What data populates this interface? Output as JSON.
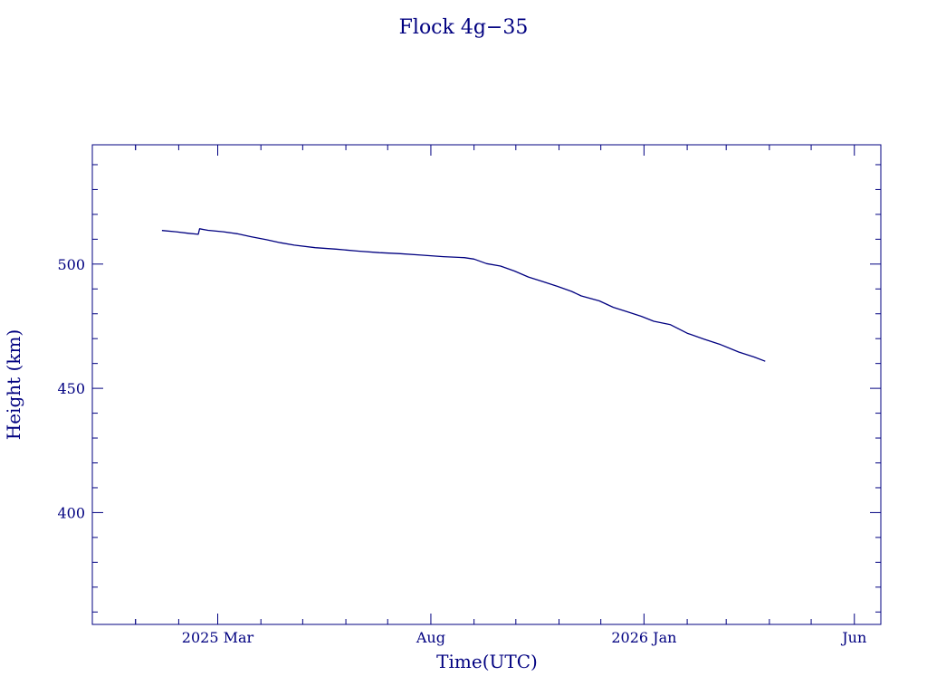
{
  "chart_data": {
    "type": "line",
    "title": "Flock 4g−35",
    "xlabel": "Time(UTC)",
    "ylabel": "Height (km)",
    "xlim": [
      "2024-12-01",
      "2026-06-20"
    ],
    "ylim": [
      355,
      548
    ],
    "x_ticks": [
      {
        "date": "2025-03-01",
        "label": "2025 Mar"
      },
      {
        "date": "2025-08-01",
        "label": "Aug"
      },
      {
        "date": "2026-01-01",
        "label": "2026 Jan"
      },
      {
        "date": "2026-06-01",
        "label": "Jun"
      }
    ],
    "y_ticks": [
      {
        "value": 400,
        "label": "400"
      },
      {
        "value": 450,
        "label": "450"
      },
      {
        "value": 500,
        "label": "500"
      }
    ],
    "grid": false,
    "color": "#000080",
    "series": [
      {
        "points": [
          [
            "2025-01-20",
            513.5
          ],
          [
            "2025-01-30",
            513.0
          ],
          [
            "2025-02-08",
            512.4
          ],
          [
            "2025-02-15",
            512.0
          ],
          [
            "2025-02-16",
            514.2
          ],
          [
            "2025-02-22",
            513.6
          ],
          [
            "2025-03-05",
            513.0
          ],
          [
            "2025-03-15",
            512.2
          ],
          [
            "2025-03-25",
            511.0
          ],
          [
            "2025-04-05",
            509.8
          ],
          [
            "2025-04-15",
            508.6
          ],
          [
            "2025-04-25",
            507.6
          ],
          [
            "2025-05-10",
            506.6
          ],
          [
            "2025-05-25",
            506.0
          ],
          [
            "2025-06-10",
            505.2
          ],
          [
            "2025-06-25",
            504.6
          ],
          [
            "2025-07-10",
            504.2
          ],
          [
            "2025-07-25",
            503.6
          ],
          [
            "2025-08-10",
            503.0
          ],
          [
            "2025-08-25",
            502.6
          ],
          [
            "2025-09-01",
            502.0
          ],
          [
            "2025-09-10",
            500.2
          ],
          [
            "2025-09-20",
            499.2
          ],
          [
            "2025-09-30",
            497.2
          ],
          [
            "2025-10-10",
            494.8
          ],
          [
            "2025-10-20",
            493.0
          ],
          [
            "2025-10-31",
            491.0
          ],
          [
            "2025-11-10",
            489.0
          ],
          [
            "2025-11-17",
            487.2
          ],
          [
            "2025-11-30",
            485.2
          ],
          [
            "2025-12-10",
            482.6
          ],
          [
            "2025-12-20",
            480.8
          ],
          [
            "2025-12-30",
            479.0
          ],
          [
            "2026-01-08",
            477.0
          ],
          [
            "2026-01-20",
            475.6
          ],
          [
            "2026-02-01",
            472.2
          ],
          [
            "2026-02-13",
            469.8
          ],
          [
            "2026-02-25",
            467.6
          ],
          [
            "2026-03-10",
            464.6
          ],
          [
            "2026-03-21",
            462.6
          ],
          [
            "2026-03-29",
            460.9
          ]
        ]
      }
    ]
  }
}
